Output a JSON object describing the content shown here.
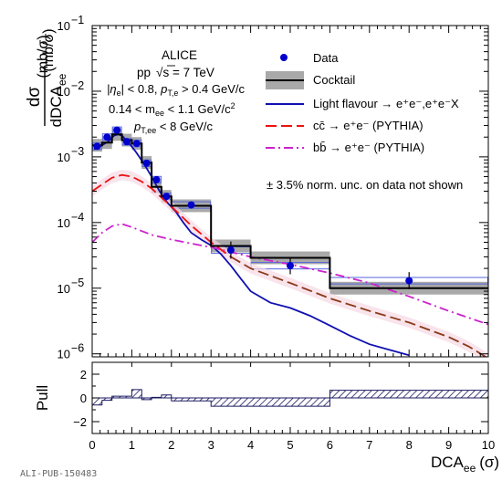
{
  "chart_data": {
    "type": "step-histogram",
    "title": "",
    "xlabel": "DCA",
    "xlabel_sub": "ee",
    "xlabel_unit": "(σ)",
    "xlim": [
      0,
      10
    ],
    "xticks": [
      0,
      1,
      2,
      3,
      4,
      5,
      6,
      7,
      8,
      9,
      10
    ],
    "ylabel_num": "dσ",
    "ylabel_den": "dDCA",
    "ylabel_den_sub": "ee",
    "ylabel_unit": "(mb/σ)",
    "yscale": "log",
    "ylim": [
      9e-07,
      0.1
    ],
    "yticks": [
      "10",
      "10",
      "10",
      "10",
      "10",
      "10"
    ],
    "ytick_exponents": [
      "−6",
      "−5",
      "−4",
      "−3",
      "−2",
      "−1"
    ],
    "annotations": {
      "experiment": "ALICE",
      "energy_prefix": "pp",
      "energy_text": "s = 7 TeV",
      "cut_eta": "|η",
      "cut_eta_sub": "e",
      "cut_eta_rest": "| < 0.8, ",
      "cut_pt": "p",
      "cut_pt_sub": "T,e",
      "cut_pt_rest": " > 0.4 GeV/c",
      "cut_mass_pre": "0.14 < m",
      "cut_mass_sub": "ee",
      "cut_mass_rest": " < 1.1 GeV/c",
      "cut_mass_sup": "2",
      "cut_ptee": "p",
      "cut_ptee_sub": "T,ee",
      "cut_ptee_rest": " < 8 GeV/c",
      "norm_note": "± 3.5% norm. unc. on data not shown"
    },
    "legend": {
      "placement": "top-right",
      "data": "Data",
      "cocktail": "Cocktail",
      "light": "Light flavour → e⁺e⁻,e⁺e⁻X",
      "charm": "cc̄ → e⁺e⁻ (PYTHIA)",
      "beauty": "bb̄ → e⁺e⁻ (PYTHIA)"
    },
    "bin_edges": [
      0,
      0.25,
      0.5,
      0.75,
      1.0,
      1.25,
      1.5,
      1.75,
      2.0,
      3.0,
      4.0,
      6.0,
      10.0
    ],
    "data_x": [
      0.125,
      0.375,
      0.625,
      0.875,
      1.125,
      1.375,
      1.625,
      1.875,
      2.5,
      3.5,
      5.0,
      8.0
    ],
    "data_y": [
      0.00145,
      0.002,
      0.00255,
      0.0017,
      0.0016,
      0.0008,
      0.00045,
      0.00025,
      0.000185,
      3.8e-05,
      2.2e-05,
      1.3e-05
    ],
    "cocktail_y": [
      0.0015,
      0.00165,
      0.0022,
      0.0018,
      0.0016,
      0.00082,
      0.00035,
      0.00025,
      0.00018,
      4.4e-05,
      2.9e-05,
      1e-05
    ],
    "light_x": [
      0.05,
      0.2,
      0.4,
      0.55,
      0.65,
      0.75,
      0.9,
      1.1,
      1.3,
      1.5,
      1.7,
      1.9,
      2.1,
      2.3,
      2.5,
      2.75,
      3.0,
      3.25,
      3.5,
      3.75,
      4.0,
      4.5,
      5.0,
      5.5,
      6.0,
      6.5,
      7.0,
      7.5,
      8.0
    ],
    "light_y": [
      0.0013,
      0.00145,
      0.0017,
      0.0021,
      0.0022,
      0.0021,
      0.0017,
      0.0012,
      0.0008,
      0.0005,
      0.0003,
      0.0002,
      0.00015,
      0.0001,
      7e-05,
      5.5e-05,
      4.5e-05,
      3.3e-05,
      2.2e-05,
      1.4e-05,
      9e-06,
      6e-06,
      5e-06,
      3.8e-06,
      2.7e-06,
      1.9e-06,
      1.4e-06,
      1.15e-06,
      9.5e-07
    ],
    "charm_x": [
      0.0,
      0.25,
      0.5,
      0.75,
      1.0,
      1.25,
      1.5,
      1.75,
      2.0,
      2.5,
      3.0,
      3.5,
      4.0,
      5.0,
      6.0,
      7.0,
      8.0,
      9.0,
      9.5,
      10.0
    ],
    "charm_y": [
      0.0003,
      0.00038,
      0.00048,
      0.00053,
      0.0005,
      0.00042,
      0.00033,
      0.00024,
      0.000175,
      9e-05,
      5e-05,
      3e-05,
      2e-05,
      1.2e-05,
      7e-06,
      4.5e-06,
      3e-06,
      1.8e-06,
      1.3e-06,
      8.5e-07
    ],
    "beauty_x": [
      0.0,
      0.25,
      0.5,
      0.75,
      1.0,
      1.5,
      2.0,
      2.5,
      3.0,
      4.0,
      5.0,
      6.0,
      7.0,
      8.0,
      9.0,
      10.0
    ],
    "beauty_y": [
      5e-05,
      7e-05,
      8.8e-05,
      9.5e-05,
      8.5e-05,
      6.5e-05,
      5.5e-05,
      4.8e-05,
      4.2e-05,
      3e-05,
      2.3e-05,
      1.7e-05,
      1.2e-05,
      7.5e-06,
      4.5e-06,
      2.8e-06
    ],
    "pull": {
      "ylabel": "Pull",
      "ylim": [
        -3,
        3
      ],
      "yticks": [
        "−2",
        "0",
        "2"
      ],
      "bin_edges": [
        0,
        0.25,
        0.5,
        0.75,
        1.0,
        1.25,
        1.5,
        1.75,
        2.0,
        3.0,
        6.0,
        10.0
      ],
      "values": [
        -0.6,
        -0.2,
        0.15,
        0.15,
        0.7,
        -0.15,
        0.05,
        0.25,
        -0.25,
        -0.7,
        0.65
      ]
    },
    "footer": "ALI-PUB-150483"
  }
}
